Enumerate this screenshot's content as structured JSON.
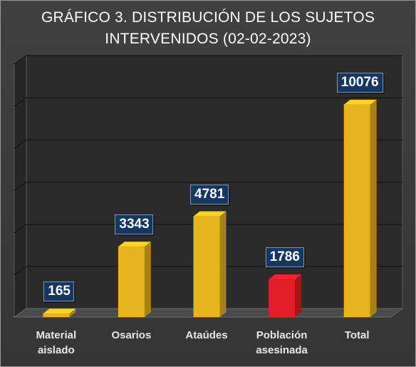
{
  "chart_data": {
    "type": "bar",
    "title_line1": "GRÁFICO 3. DISTRIBUCIÓN DE LOS SUJETOS",
    "title_line2": "INTERVENIDOS (02-02-2023)",
    "categories": [
      {
        "label": [
          "Material",
          "aislado"
        ],
        "value": 165,
        "value_label": "165",
        "color": "#e7b31f"
      },
      {
        "label": [
          "Osarios"
        ],
        "value": 3343,
        "value_label": "3343",
        "color": "#e7b31f"
      },
      {
        "label": [
          "Ataúdes"
        ],
        "value": 4781,
        "value_label": "4781",
        "color": "#e7b31f"
      },
      {
        "label": [
          "Población",
          "asesinada"
        ],
        "value": 1786,
        "value_label": "1786",
        "color": "#e21e26"
      },
      {
        "label": [
          "Total"
        ],
        "value": 10076,
        "value_label": "10076",
        "color": "#e7b31f"
      }
    ],
    "ylim": [
      0,
      12000
    ],
    "grid": true,
    "xlabel": "",
    "ylabel": ""
  }
}
